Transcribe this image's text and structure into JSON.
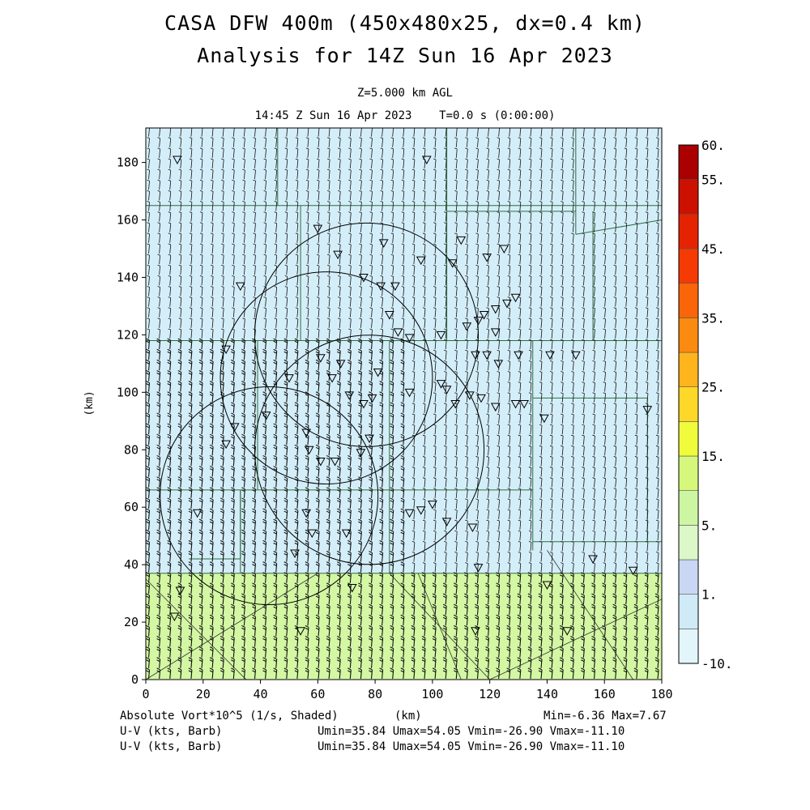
{
  "header": {
    "title_line1": "CASA DFW 400m (450x480x25, dx=0.4 km)",
    "title_line2": "Analysis for 14Z Sun 16 Apr 2023",
    "level": "Z=5.000 km AGL",
    "time": "14:45 Z Sun 16 Apr 2023    T=0.0 s (0:00:00)"
  },
  "footer": {
    "field_label": "Absolute Vort*10^5 (1/s, Shaded)",
    "x_unit": "(km)",
    "minmax": "Min=-6.36 Max=7.67",
    "barb1_label": "U-V (kts, Barb)",
    "barb1_stats": "Umin=35.84 Umax=54.05 Vmin=-26.90 Vmax=-11.10",
    "barb2_label": "U-V (kts, Barb)",
    "barb2_stats": "Umin=35.84 Umax=54.05 Vmin=-26.90 Vmax=-11.10"
  },
  "chart_data": {
    "type": "heatmap",
    "xlabel": "(km)",
    "ylabel": "(km)",
    "xlim": [
      0,
      180
    ],
    "ylim": [
      0,
      192
    ],
    "x_ticks": [
      0,
      20,
      40,
      60,
      80,
      100,
      120,
      140,
      160,
      180
    ],
    "y_ticks": [
      0,
      20,
      40,
      60,
      80,
      100,
      120,
      140,
      160,
      180
    ],
    "x_tick_labels": [
      "0",
      "20",
      "40",
      "60",
      "80",
      "100",
      "120",
      "140",
      "160",
      "180"
    ],
    "y_tick_labels": [
      "0",
      "20",
      "40",
      "60",
      "80",
      "100",
      "120",
      "140",
      "160",
      "180"
    ],
    "field_regions": [
      {
        "y_from": 0,
        "y_to": 37,
        "color": "#d4f7a4"
      },
      {
        "y_from": 37,
        "y_to": 192,
        "color": "#d4eef9"
      }
    ],
    "colorbar": {
      "levels": [
        -10,
        0,
        1,
        3,
        5,
        10,
        15,
        20,
        25,
        30,
        35,
        40,
        45,
        50,
        55,
        60
      ],
      "colors": [
        "#e2f5fb",
        "#d0eaf7",
        "#c9d7f4",
        "#dcf7c8",
        "#cdf6a3",
        "#d4f77c",
        "#f0fb3c",
        "#fdd829",
        "#fdb41d",
        "#fb8a10",
        "#f96508",
        "#f53a04",
        "#e52302",
        "#cc1101",
        "#ab0000"
      ],
      "labels": [
        {
          "value": -10,
          "text": "-10."
        },
        {
          "value": 1,
          "text": "1."
        },
        {
          "value": 5,
          "text": "5."
        },
        {
          "value": 15,
          "text": "15."
        },
        {
          "value": 25,
          "text": "25."
        },
        {
          "value": 35,
          "text": "35."
        },
        {
          "value": 45,
          "text": "45."
        },
        {
          "value": 55,
          "text": "55."
        },
        {
          "value": 60,
          "text": "60."
        }
      ]
    },
    "radar_rings": [
      {
        "cx": 77,
        "cy": 120,
        "r": 39
      },
      {
        "cx": 63,
        "cy": 105,
        "r": 37
      },
      {
        "cx": 78,
        "cy": 80,
        "r": 40
      },
      {
        "cx": 43,
        "cy": 64,
        "r": 38
      }
    ],
    "wind": {
      "u_min": 35.84,
      "u_max": 54.05,
      "v_min": -26.9,
      "v_max": -11.1
    }
  }
}
